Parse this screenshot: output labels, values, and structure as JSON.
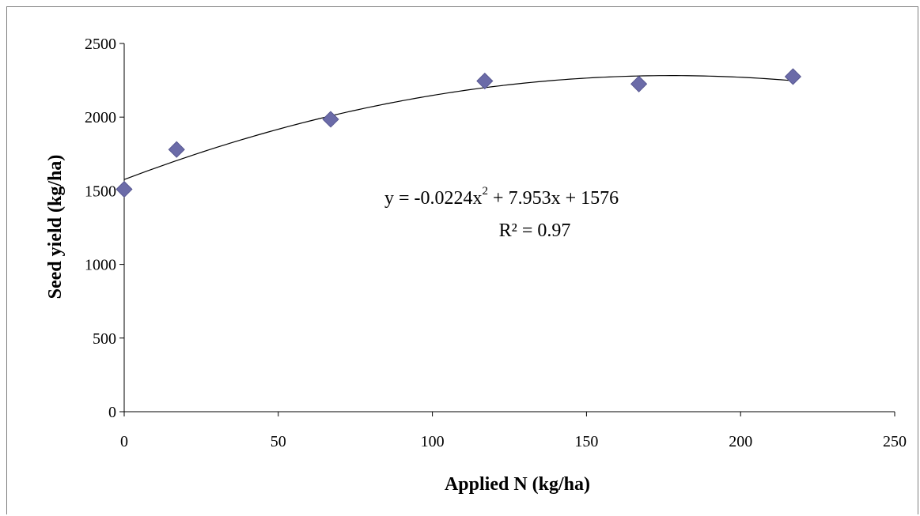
{
  "chart_data": {
    "type": "scatter",
    "xlabel": "Applied N (kg/ha)",
    "ylabel": "Seed yield (kg/ha)",
    "xlim": [
      0,
      250
    ],
    "ylim": [
      0,
      2500
    ],
    "x_ticks": [
      "0",
      "50",
      "100",
      "150",
      "200",
      "250"
    ],
    "y_ticks": [
      "0",
      "500",
      "1000",
      "1500",
      "2000",
      "2500"
    ],
    "grid": false,
    "legend": "none",
    "marker": "diamond",
    "marker_color": "#6b6ba8",
    "series": [
      {
        "x": [
          0,
          17,
          67,
          117,
          167,
          217
        ],
        "y": [
          1510,
          1780,
          1985,
          2245,
          2225,
          2275
        ]
      }
    ],
    "trendline": {
      "type": "polynomial",
      "coefficients": {
        "a": -0.0224,
        "b": 7.953,
        "c": 1576
      },
      "x_range": [
        0,
        217
      ],
      "color": "#000000"
    },
    "annotation": {
      "equation_prefix": "y = -0.0224x",
      "equation_exponent": "2",
      "equation_suffix": " + 7.953x + 1576",
      "r_squared": "R² = 0.97"
    }
  }
}
